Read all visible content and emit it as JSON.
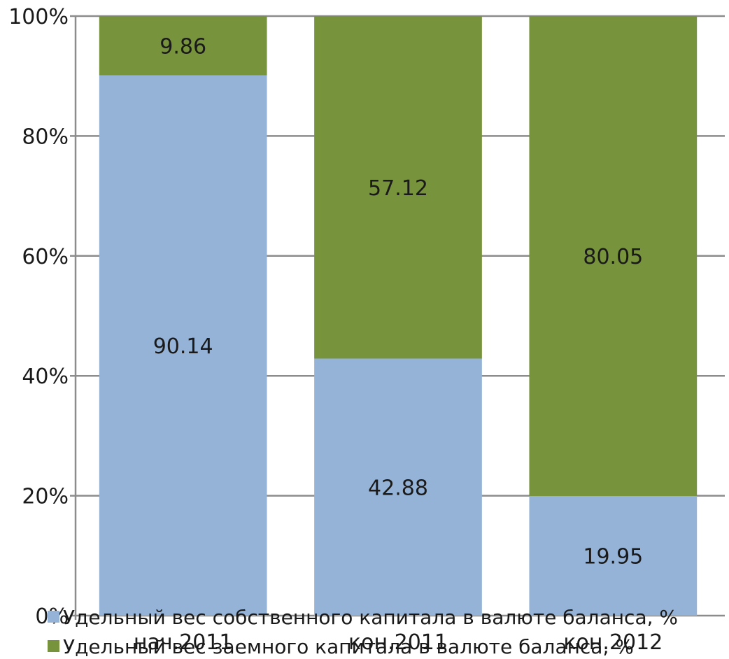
{
  "chart_data": {
    "type": "bar",
    "stacked": true,
    "percent_stacked": true,
    "categories": [
      "нач.2011",
      "кон.2011",
      "кон.2012"
    ],
    "series": [
      {
        "name": "Удельный вес собственного капитала в валюте баланса, %",
        "values": [
          90.14,
          42.88,
          19.95
        ],
        "color": "#95b3d7"
      },
      {
        "name": "Удельный вес заемного капитала в валюте баланса, %",
        "values": [
          9.86,
          57.12,
          80.05
        ],
        "color": "#77933c"
      }
    ],
    "y_ticks": [
      "0%",
      "20%",
      "40%",
      "60%",
      "80%",
      "100%"
    ],
    "ylim": [
      0,
      100
    ],
    "grid": true,
    "legend": "bottom",
    "data_labels": true
  }
}
